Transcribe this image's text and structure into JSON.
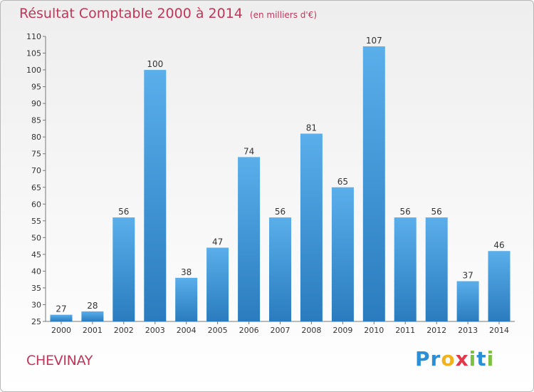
{
  "chart_data": {
    "type": "bar",
    "title": "Résultat Comptable 2000 à 2014",
    "subtitle": "(en milliers d'€)",
    "categories": [
      "2000",
      "2001",
      "2002",
      "2003",
      "2004",
      "2005",
      "2006",
      "2007",
      "2008",
      "2009",
      "2010",
      "2011",
      "2012",
      "2013",
      "2014"
    ],
    "values": [
      27,
      28,
      56,
      100,
      38,
      47,
      74,
      56,
      81,
      65,
      107,
      56,
      56,
      37,
      46
    ],
    "ylim": [
      25,
      110
    ],
    "yticks": [
      25,
      30,
      35,
      40,
      45,
      50,
      55,
      60,
      65,
      70,
      75,
      80,
      85,
      90,
      95,
      100,
      105,
      110
    ],
    "grid": false,
    "legend": "none",
    "bar_color_top": "#5aaeea",
    "bar_color_bottom": "#2a7cbe",
    "label_color": "#333333"
  },
  "commune": "CHEVINAY",
  "brand": {
    "letters": [
      "P",
      "r",
      "o",
      "x",
      "i",
      "t",
      "i"
    ],
    "colors": [
      "#2a8fd6",
      "#2a8fd6",
      "#f2b21c",
      "#e2384a",
      "#7cc242",
      "#2a8fd6",
      "#7cc242"
    ]
  },
  "colors": {
    "accent": "#c0365a"
  }
}
